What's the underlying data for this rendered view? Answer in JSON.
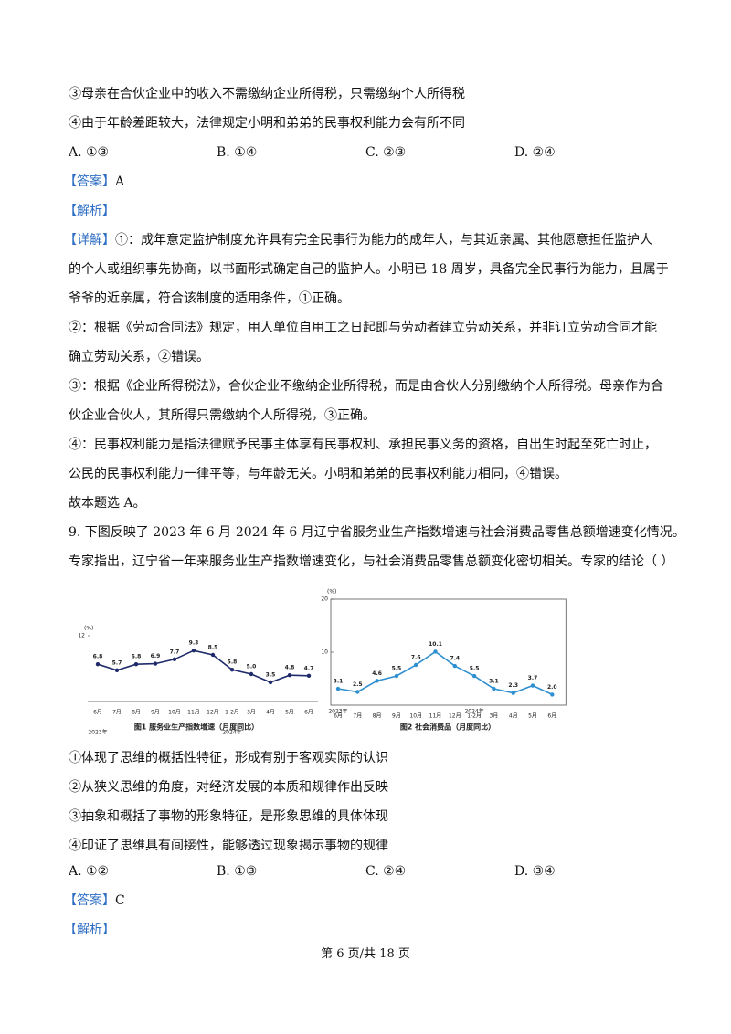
{
  "top": [
    "③母亲在合伙企业中的收入不需缴纳企业所得税，只需缴纳个人所得税",
    "④由于年龄差距较大，法律规定小明和弟弟的民事权利能力会有所不同"
  ],
  "options1": [
    "A. ①③",
    "B. ①④",
    "C. ②③",
    "D. ②④"
  ],
  "answer1": {
    "tag": "【答案】",
    "text": "A"
  },
  "analysis1": "【解析】",
  "detail_tag": "【详解】",
  "detail": [
    "①：成年意定监护制度允许具有完全民事行为能力的成年人，与其近亲属、其他愿意担任监护人",
    "的个人或组织事先协商，以书面形式确定自己的监护人。小明已 18 周岁，具备完全民事行为能力，且属于",
    "爷爷的近亲属，符合该制度的适用条件，①正确。",
    "②：根据《劳动合同法》规定，用人单位自用工之日起即与劳动者建立劳动关系，并非订立劳动合同才能",
    "确立劳动关系，②错误。",
    "③：根据《企业所得税法》，合伙企业不缴纳企业所得税，而是由合伙人分别缴纳个人所得税。母亲作为合",
    "伙企业合伙人，其所得只需缴纳个人所得税，③正确。",
    "④：民事权利能力是指法律赋予民事主体享有民事权利、承担民事义务的资格，自出生时起至死亡时止，",
    "公民的民事权利能力一律平等，与年龄无关。小明和弟弟的民事权利能力相同，④错误。",
    "故本题选 A。"
  ],
  "question9": [
    "9. 下图反映了 2023 年 6 月-2024 年 6 月辽宁省服务业生产指数增速与社会消费品零售总额增速变化情况。",
    "专家指出，辽宁省一年来服务业生产指数增速变化，与社会消费品零售总额变化密切相关。专家的结论（    ）"
  ],
  "chart_data": [
    {
      "type": "line",
      "title": "图1  服务业生产指数增速（月度同比）",
      "y_unit": "(%)",
      "color": "#1f2a6b",
      "categories": [
        "6月",
        "7月",
        "8月",
        "9月",
        "10月",
        "11月",
        "12月",
        "1-2月",
        "3月",
        "4月",
        "5月",
        "6月"
      ],
      "year_labels": [
        "2023年",
        null,
        null,
        null,
        null,
        null,
        null,
        "2024年",
        null,
        null,
        null,
        null
      ],
      "values": [
        6.8,
        5.7,
        6.8,
        6.9,
        7.7,
        9.3,
        8.5,
        5.8,
        5.0,
        3.5,
        4.8,
        4.7
      ],
      "value_labels": [
        "6.8",
        "5.7",
        "6.8",
        "6.9",
        "7.7",
        "9.3",
        "8.5",
        "5.8",
        "5.0",
        "3.5",
        "4.8",
        "4.7"
      ],
      "ylim": [
        0,
        12
      ],
      "yticks": [
        12
      ]
    },
    {
      "type": "line",
      "title": "图2  社会消费品（月度同比）",
      "y_unit": "(%)",
      "color": "#2e8fd1",
      "categories": [
        "6月",
        "7月",
        "8月",
        "9月",
        "10月",
        "11月",
        "12月",
        "1-2月",
        "3月",
        "4月",
        "5月",
        "6月"
      ],
      "year_labels": [
        "2023年",
        null,
        null,
        null,
        null,
        null,
        null,
        "2024年",
        null,
        null,
        null,
        null
      ],
      "values": [
        3.1,
        2.5,
        4.6,
        5.5,
        7.6,
        10.1,
        7.4,
        5.5,
        3.1,
        2.3,
        3.7,
        2.0
      ],
      "value_labels": [
        "3.1",
        "2.5",
        "4.6",
        "5.5",
        "7.6",
        "10.1",
        "7.4",
        "5.5",
        "3.1",
        "2.3",
        "3.7",
        "2.0"
      ],
      "ylim": [
        0,
        20
      ],
      "yticks": [
        10,
        20
      ]
    }
  ],
  "statements": [
    "①体现了思维的概括性特征，形成有别于客观实际的认识",
    "②从狭义思维的角度，对经济发展的本质和规律作出反映",
    "③抽象和概括了事物的形象特征，是形象思维的具体体现",
    "④印证了思维具有间接性，能够透过现象揭示事物的规律"
  ],
  "options2": [
    "A. ①②",
    "B. ①③",
    "C. ②④",
    "D. ③④"
  ],
  "answer2": {
    "tag": "【答案】",
    "text": "C"
  },
  "analysis2": "【解析】",
  "footer": "第 6 页/共 18 页"
}
